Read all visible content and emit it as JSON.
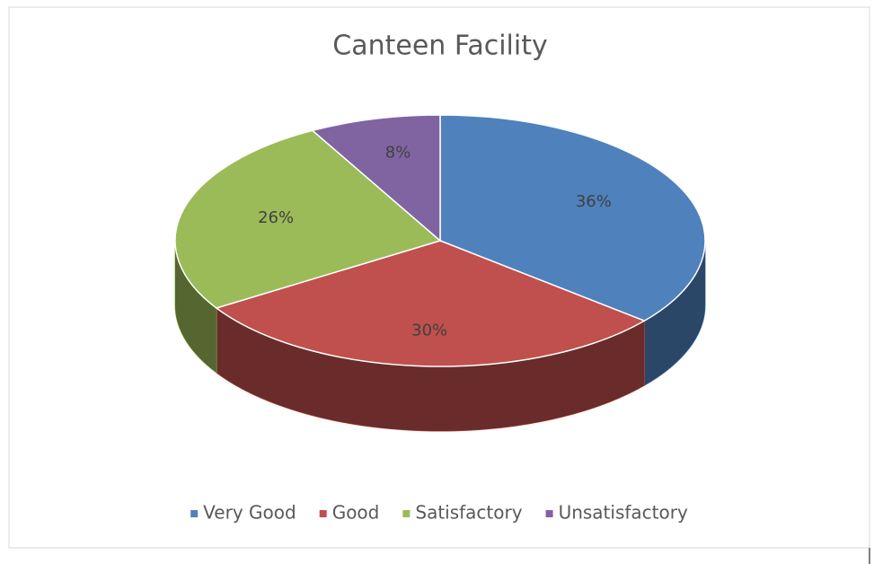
{
  "chart_data": {
    "type": "pie3d",
    "title": "Canteen Facility",
    "categories": [
      "Very Good",
      "Good",
      "Satisfactory",
      "Unsatisfactory"
    ],
    "values": [
      36,
      30,
      26,
      8
    ],
    "value_labels": [
      "36%",
      "30%",
      "26%",
      "8%"
    ],
    "colors": [
      "#4f81bd",
      "#c0504d",
      "#9bbb59",
      "#8064a2"
    ],
    "legend": "bottom"
  }
}
